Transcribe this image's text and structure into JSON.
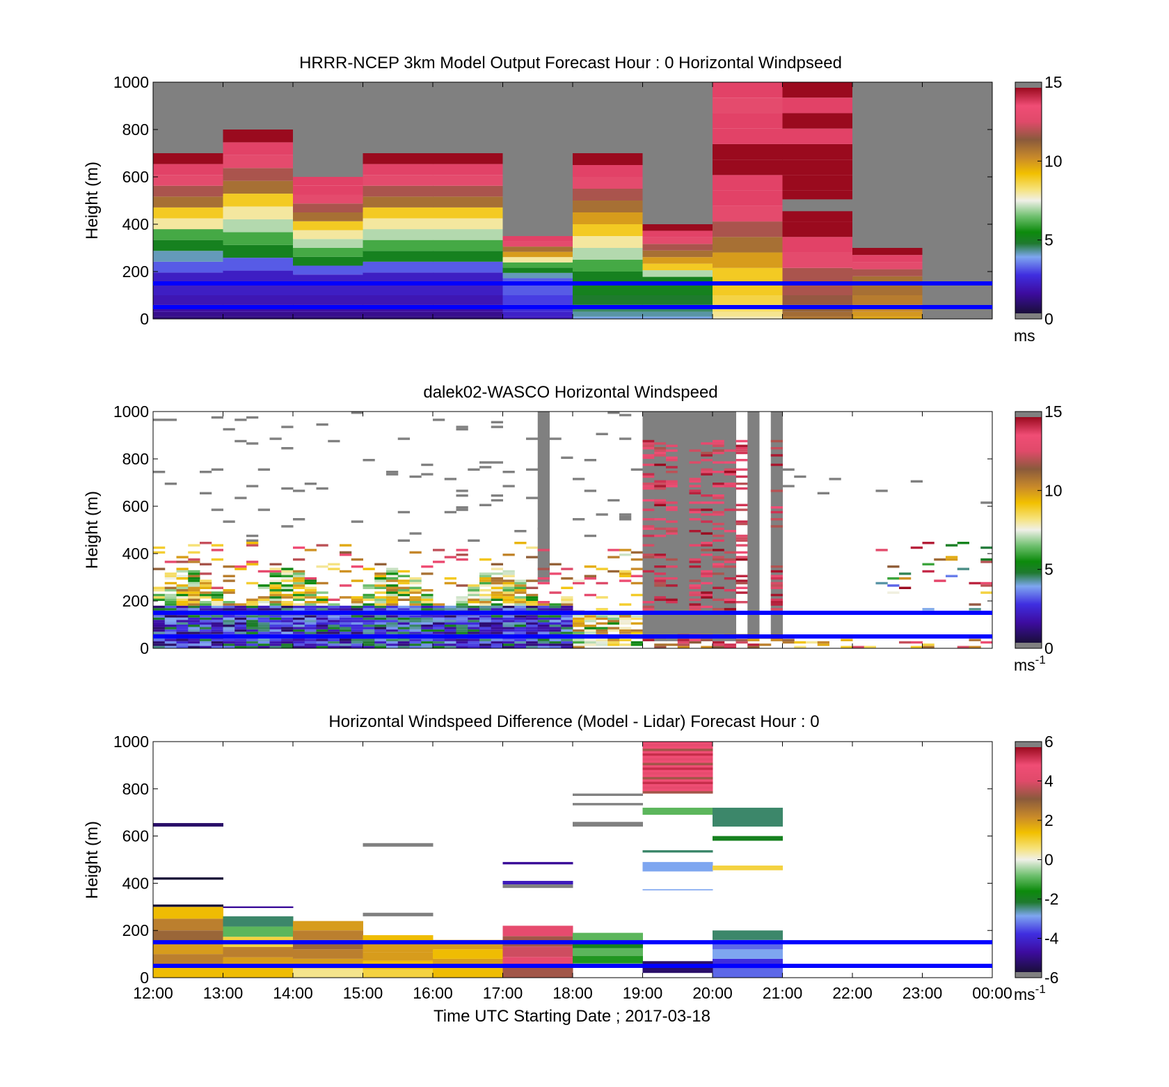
{
  "chart_data": [
    {
      "type": "heatmap",
      "title": "HRRR-NCEP 3km Model Output   Forecast Hour : 0 Horizontal Windpseed",
      "ylabel": "Height (m)",
      "xlabel": "",
      "ylim": [
        0,
        1000
      ],
      "yticks": [
        0,
        200,
        400,
        600,
        800,
        1000
      ],
      "colorbar": {
        "ticks": [
          0,
          5,
          10,
          15
        ],
        "range": [
          0,
          15
        ],
        "unit_label": "ms",
        "unit_sup": ""
      },
      "reference_lines_m": [
        150,
        50
      ],
      "columns": [
        {
          "x": "12:00",
          "top": 700,
          "profile": [
            2,
            3,
            4,
            5,
            6,
            8,
            9,
            11,
            12,
            13,
            14,
            15
          ]
        },
        {
          "x": "13:00",
          "top": 800,
          "profile": [
            2,
            3,
            5,
            6,
            7,
            8,
            9,
            11,
            12,
            13,
            14,
            15
          ]
        },
        {
          "x": "14:00",
          "top": 600,
          "profile": [
            2,
            3,
            5,
            6,
            7,
            8,
            9,
            11,
            12,
            13,
            14,
            14
          ]
        },
        {
          "x": "15:00",
          "top": 700,
          "profile": [
            2,
            3,
            5,
            6,
            7,
            8,
            9,
            11,
            12,
            13,
            14,
            15
          ]
        },
        {
          "x": "16:00",
          "top": 700,
          "profile": [
            2,
            3,
            5,
            6,
            7,
            8,
            9,
            11,
            12,
            13,
            14,
            15
          ]
        },
        {
          "x": "17:00",
          "top": 350,
          "profile": [
            3,
            4,
            5,
            6,
            8,
            10,
            11,
            13,
            14
          ]
        },
        {
          "x": "18:00",
          "top": 700,
          "profile": [
            5,
            6,
            7,
            8,
            9,
            10,
            11,
            12,
            13,
            14,
            15
          ]
        },
        {
          "x": "19:00",
          "top": 400,
          "profile": [
            5,
            7,
            9,
            10,
            11,
            12,
            13,
            14,
            15
          ]
        },
        {
          "x": "20:00",
          "top": 1000,
          "profile": [
            9,
            10,
            11,
            12,
            13,
            14,
            14,
            15,
            15,
            14,
            14,
            13,
            14
          ]
        },
        {
          "x": "21:00",
          "top": 1000,
          "profile": [
            12,
            13,
            14,
            15,
            15,
            15,
            15,
            15,
            15,
            14,
            15,
            14,
            15
          ]
        },
        {
          "x": "22:00",
          "top": 300,
          "profile": [
            11,
            12,
            13,
            14,
            15
          ]
        },
        {
          "x": "23:00",
          "top": 0,
          "profile": []
        }
      ]
    },
    {
      "type": "heatmap",
      "title": "dalek02-WASCO  Horizontal Windspeed",
      "ylabel": "Height (m)",
      "xlabel": "",
      "ylim": [
        0,
        1000
      ],
      "yticks": [
        0,
        200,
        400,
        600,
        800,
        1000
      ],
      "colorbar": {
        "ticks": [
          0,
          5,
          10,
          15
        ],
        "range": [
          0,
          15
        ],
        "unit_label": "ms",
        "unit_sup": "-1"
      },
      "reference_lines_m": [
        150,
        50
      ],
      "note_values": "sparse lidar retrievals; low winds (1-5 m/s) below 200 m from 12:00-18:00, strong winds (12-15 m/s) aloft 19:00-21:00, scattered returns after 21:00"
    },
    {
      "type": "heatmap",
      "title": "Horizontal Windspeed Difference (Model - Lidar) Forecast Hour : 0",
      "ylabel": "Height (m)",
      "xlabel": "Time UTC  Starting Date ; 2017-03-18",
      "ylim": [
        0,
        1000
      ],
      "yticks": [
        0,
        200,
        400,
        600,
        800,
        1000
      ],
      "xticks": [
        "12:00",
        "13:00",
        "14:00",
        "15:00",
        "16:00",
        "17:00",
        "18:00",
        "19:00",
        "20:00",
        "21:00",
        "22:00",
        "23:00",
        "00:00"
      ],
      "colorbar": {
        "ticks": [
          -6,
          -4,
          -2,
          0,
          2,
          4,
          6
        ],
        "range": [
          -6,
          6
        ],
        "unit_label": "ms",
        "unit_sup": "-1"
      },
      "reference_lines_m": [
        150,
        50
      ],
      "note_values": "model faster than lidar (+1 to +3 m/s) below 250 m from 12:00-18:00; large positive (+4 to +6 m/s) 780-1000 m at 19:00-20:00; negative (-2 to -4 m/s) at 20:00-21:00"
    }
  ]
}
